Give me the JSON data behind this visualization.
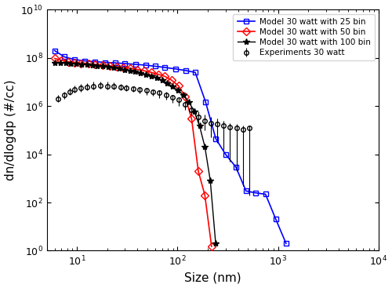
{
  "title": "",
  "xlabel": "Size (nm)",
  "ylabel": "dn/dlogdp (#/cc)",
  "xlim": [
    5,
    10000
  ],
  "ylim": [
    1,
    10000000000.0
  ],
  "legend": [
    "Experiments 30 watt",
    "Model 30 watt with 25 bin",
    "Model 30 watt with 50 bin",
    "Model 30 watt with 100 bin"
  ],
  "exp_x": [
    6.5,
    7.5,
    8.5,
    9.5,
    11.0,
    12.5,
    14.5,
    17.0,
    20.0,
    23.0,
    27.0,
    31.0,
    36.0,
    42.0,
    49.0,
    57.0,
    66.0,
    77.0,
    89.0,
    103.0,
    119.0,
    138.0,
    160.0,
    185.0,
    214.0,
    248.0,
    287.0,
    333.0,
    386.0,
    447.0,
    518.0
  ],
  "exp_y": [
    2000000.0,
    2800000.0,
    3800000.0,
    4800000.0,
    5500000.0,
    6200000.0,
    6800000.0,
    7000000.0,
    6800000.0,
    6500000.0,
    6200000.0,
    5800000.0,
    5400000.0,
    5000000.0,
    4500000.0,
    4000000.0,
    3500000.0,
    3000000.0,
    2400000.0,
    1800000.0,
    1200000.0,
    700000.0,
    350000.0,
    250000.0,
    200000.0,
    180000.0,
    150000.0,
    130000.0,
    120000.0,
    110000.0,
    120000.0
  ],
  "exp_yerr_low": [
    1500000.0,
    2000000.0,
    2800000.0,
    3500000.0,
    4000000.0,
    4500000.0,
    5000000.0,
    5200000.0,
    5000000.0,
    4800000.0,
    4500000.0,
    4200000.0,
    3800000.0,
    3400000.0,
    3000000.0,
    2600000.0,
    2200000.0,
    1800000.0,
    1400000.0,
    1000000.0,
    700000.0,
    400000.0,
    200000.0,
    100000.0,
    50000.0,
    30000.0,
    15000.0,
    5000.0,
    2000.0,
    500.0,
    200.0
  ],
  "exp_yerr_high": [
    2800000.0,
    4000000.0,
    5500000.0,
    7000000.0,
    8000000.0,
    9000000.0,
    10000000.0,
    10500000.0,
    10000000.0,
    9500000.0,
    8500000.0,
    7500000.0,
    6800000.0,
    6000000.0,
    5500000.0,
    5000000.0,
    4500000.0,
    3800000.0,
    3000000.0,
    2200000.0,
    1600000.0,
    1000000.0,
    600000.0,
    450000.0,
    350000.0,
    300000.0,
    250000.0,
    200000.0,
    180000.0,
    150000.0,
    150000.0
  ],
  "m25_x": [
    6.0,
    7.5,
    9.5,
    12.0,
    15.0,
    19.0,
    24.0,
    30.0,
    38.0,
    48.0,
    60.0,
    75.0,
    95.0,
    120.0,
    150.0,
    190.0,
    240.0,
    300.0,
    380.0,
    480.0,
    600.0,
    750.0,
    950.0,
    1200.0
  ],
  "m25_y": [
    200000000.0,
    110000000.0,
    85000000.0,
    75000000.0,
    70000000.0,
    65000000.0,
    62000000.0,
    58000000.0,
    54000000.0,
    50000000.0,
    45000000.0,
    40000000.0,
    35000000.0,
    30000000.0,
    25000000.0,
    1500000.0,
    45000.0,
    10000.0,
    3000.0,
    300.0,
    250.0,
    220.0,
    20.0,
    2.0
  ],
  "m50_x": [
    6.0,
    7.0,
    8.2,
    9.5,
    11.0,
    13.0,
    15.0,
    18.0,
    21.0,
    25.0,
    29.0,
    34.0,
    40.0,
    47.0,
    55.0,
    64.0,
    75.0,
    87.0,
    102.0,
    119.0,
    138.0,
    161.0,
    187.0,
    218.0
  ],
  "m50_y": [
    95000000.0,
    80000000.0,
    70000000.0,
    65000000.0,
    60000000.0,
    57000000.0,
    54000000.0,
    50000000.0,
    47000000.0,
    43000000.0,
    40000000.0,
    37000000.0,
    33000000.0,
    29000000.0,
    25000000.0,
    21000000.0,
    17000000.0,
    12000000.0,
    7000000.0,
    2500000.0,
    300000.0,
    2000.0,
    200.0,
    1.5
  ],
  "m100_x": [
    6.0,
    6.8,
    7.7,
    8.7,
    9.8,
    11.1,
    12.5,
    14.2,
    16.0,
    18.1,
    20.5,
    23.2,
    26.2,
    29.6,
    33.5,
    37.9,
    42.8,
    48.4,
    54.8,
    61.9,
    70.0,
    79.2,
    89.6,
    101.3,
    114.6,
    129.5,
    146.5,
    165.6,
    187.3,
    211.8,
    239.5
  ],
  "m100_y": [
    65000000.0,
    63000000.0,
    61000000.0,
    59000000.0,
    57000000.0,
    54000000.0,
    52000000.0,
    50000000.0,
    47000000.0,
    45000000.0,
    42000000.0,
    39000000.0,
    36000000.0,
    33000000.0,
    30000000.0,
    27000000.0,
    24000000.0,
    21000000.0,
    18000000.0,
    15000000.0,
    12000000.0,
    9000000.0,
    6500000.0,
    4500000.0,
    2800000.0,
    1500000.0,
    600000.0,
    150000.0,
    20000.0,
    800.0,
    2.0
  ]
}
